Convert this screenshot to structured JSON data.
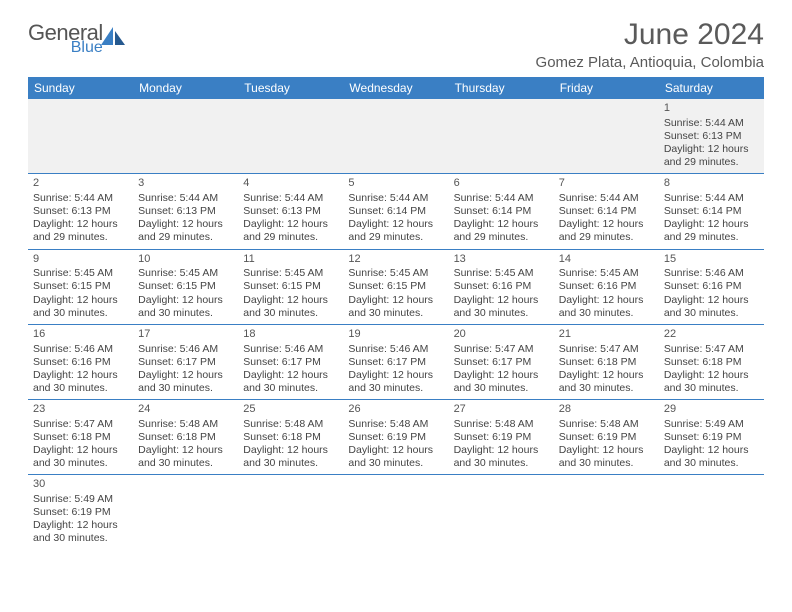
{
  "brand": {
    "word1": "General",
    "word2": "Blue",
    "color_primary": "#3a7fc4",
    "color_text": "#555555"
  },
  "title": "June 2024",
  "location": "Gomez Plata, Antioquia, Colombia",
  "weekdays": [
    "Sunday",
    "Monday",
    "Tuesday",
    "Wednesday",
    "Thursday",
    "Friday",
    "Saturday"
  ],
  "style": {
    "page_bg": "#ffffff",
    "header_bg": "#3a7fc4",
    "header_fg": "#ffffff",
    "cell_border": "#3a7fc4",
    "first_row_bg": "#f1f1f1",
    "body_text": "#444444",
    "title_color": "#5a5a5a",
    "font_family": "Arial",
    "title_fontsize_pt": 22,
    "location_fontsize_pt": 11,
    "cell_fontsize_pt": 8
  },
  "labels": {
    "sunrise": "Sunrise",
    "sunset": "Sunset",
    "daylight": "Daylight"
  },
  "days": [
    {
      "n": 1,
      "sunrise": "5:44 AM",
      "sunset": "6:13 PM",
      "dl_h": 12,
      "dl_m": 29
    },
    {
      "n": 2,
      "sunrise": "5:44 AM",
      "sunset": "6:13 PM",
      "dl_h": 12,
      "dl_m": 29
    },
    {
      "n": 3,
      "sunrise": "5:44 AM",
      "sunset": "6:13 PM",
      "dl_h": 12,
      "dl_m": 29
    },
    {
      "n": 4,
      "sunrise": "5:44 AM",
      "sunset": "6:13 PM",
      "dl_h": 12,
      "dl_m": 29
    },
    {
      "n": 5,
      "sunrise": "5:44 AM",
      "sunset": "6:14 PM",
      "dl_h": 12,
      "dl_m": 29
    },
    {
      "n": 6,
      "sunrise": "5:44 AM",
      "sunset": "6:14 PM",
      "dl_h": 12,
      "dl_m": 29
    },
    {
      "n": 7,
      "sunrise": "5:44 AM",
      "sunset": "6:14 PM",
      "dl_h": 12,
      "dl_m": 29
    },
    {
      "n": 8,
      "sunrise": "5:44 AM",
      "sunset": "6:14 PM",
      "dl_h": 12,
      "dl_m": 29
    },
    {
      "n": 9,
      "sunrise": "5:45 AM",
      "sunset": "6:15 PM",
      "dl_h": 12,
      "dl_m": 30
    },
    {
      "n": 10,
      "sunrise": "5:45 AM",
      "sunset": "6:15 PM",
      "dl_h": 12,
      "dl_m": 30
    },
    {
      "n": 11,
      "sunrise": "5:45 AM",
      "sunset": "6:15 PM",
      "dl_h": 12,
      "dl_m": 30
    },
    {
      "n": 12,
      "sunrise": "5:45 AM",
      "sunset": "6:15 PM",
      "dl_h": 12,
      "dl_m": 30
    },
    {
      "n": 13,
      "sunrise": "5:45 AM",
      "sunset": "6:16 PM",
      "dl_h": 12,
      "dl_m": 30
    },
    {
      "n": 14,
      "sunrise": "5:45 AM",
      "sunset": "6:16 PM",
      "dl_h": 12,
      "dl_m": 30
    },
    {
      "n": 15,
      "sunrise": "5:46 AM",
      "sunset": "6:16 PM",
      "dl_h": 12,
      "dl_m": 30
    },
    {
      "n": 16,
      "sunrise": "5:46 AM",
      "sunset": "6:16 PM",
      "dl_h": 12,
      "dl_m": 30
    },
    {
      "n": 17,
      "sunrise": "5:46 AM",
      "sunset": "6:17 PM",
      "dl_h": 12,
      "dl_m": 30
    },
    {
      "n": 18,
      "sunrise": "5:46 AM",
      "sunset": "6:17 PM",
      "dl_h": 12,
      "dl_m": 30
    },
    {
      "n": 19,
      "sunrise": "5:46 AM",
      "sunset": "6:17 PM",
      "dl_h": 12,
      "dl_m": 30
    },
    {
      "n": 20,
      "sunrise": "5:47 AM",
      "sunset": "6:17 PM",
      "dl_h": 12,
      "dl_m": 30
    },
    {
      "n": 21,
      "sunrise": "5:47 AM",
      "sunset": "6:18 PM",
      "dl_h": 12,
      "dl_m": 30
    },
    {
      "n": 22,
      "sunrise": "5:47 AM",
      "sunset": "6:18 PM",
      "dl_h": 12,
      "dl_m": 30
    },
    {
      "n": 23,
      "sunrise": "5:47 AM",
      "sunset": "6:18 PM",
      "dl_h": 12,
      "dl_m": 30
    },
    {
      "n": 24,
      "sunrise": "5:48 AM",
      "sunset": "6:18 PM",
      "dl_h": 12,
      "dl_m": 30
    },
    {
      "n": 25,
      "sunrise": "5:48 AM",
      "sunset": "6:18 PM",
      "dl_h": 12,
      "dl_m": 30
    },
    {
      "n": 26,
      "sunrise": "5:48 AM",
      "sunset": "6:19 PM",
      "dl_h": 12,
      "dl_m": 30
    },
    {
      "n": 27,
      "sunrise": "5:48 AM",
      "sunset": "6:19 PM",
      "dl_h": 12,
      "dl_m": 30
    },
    {
      "n": 28,
      "sunrise": "5:48 AM",
      "sunset": "6:19 PM",
      "dl_h": 12,
      "dl_m": 30
    },
    {
      "n": 29,
      "sunrise": "5:49 AM",
      "sunset": "6:19 PM",
      "dl_h": 12,
      "dl_m": 30
    },
    {
      "n": 30,
      "sunrise": "5:49 AM",
      "sunset": "6:19 PM",
      "dl_h": 12,
      "dl_m": 30
    }
  ],
  "layout": {
    "first_weekday_index": 6,
    "rows": 6,
    "cols": 7
  }
}
